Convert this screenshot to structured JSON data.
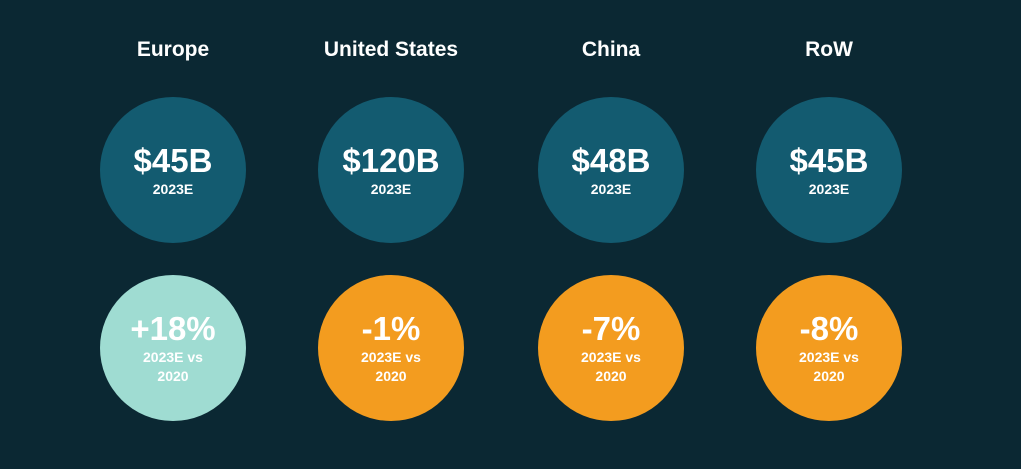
{
  "regions": [
    {
      "name": "Europe",
      "market": "$45B",
      "market_label": "2023E",
      "change": "+18%",
      "change_label": "2023E vs 2020",
      "change_color": "#9fdcd2"
    },
    {
      "name": "United States",
      "market": "$120B",
      "market_label": "2023E",
      "change": "-1%",
      "change_label": "2023E vs 2020",
      "change_color": "#f39c1f"
    },
    {
      "name": "China",
      "market": "$48B",
      "market_label": "2023E",
      "change": "-7%",
      "change_label": "2023E vs 2020",
      "change_color": "#f39c1f"
    },
    {
      "name": "RoW",
      "market": "$45B",
      "market_label": "2023E",
      "change": "-8%",
      "change_label": "2023E vs 2020",
      "change_color": "#f39c1f"
    }
  ]
}
